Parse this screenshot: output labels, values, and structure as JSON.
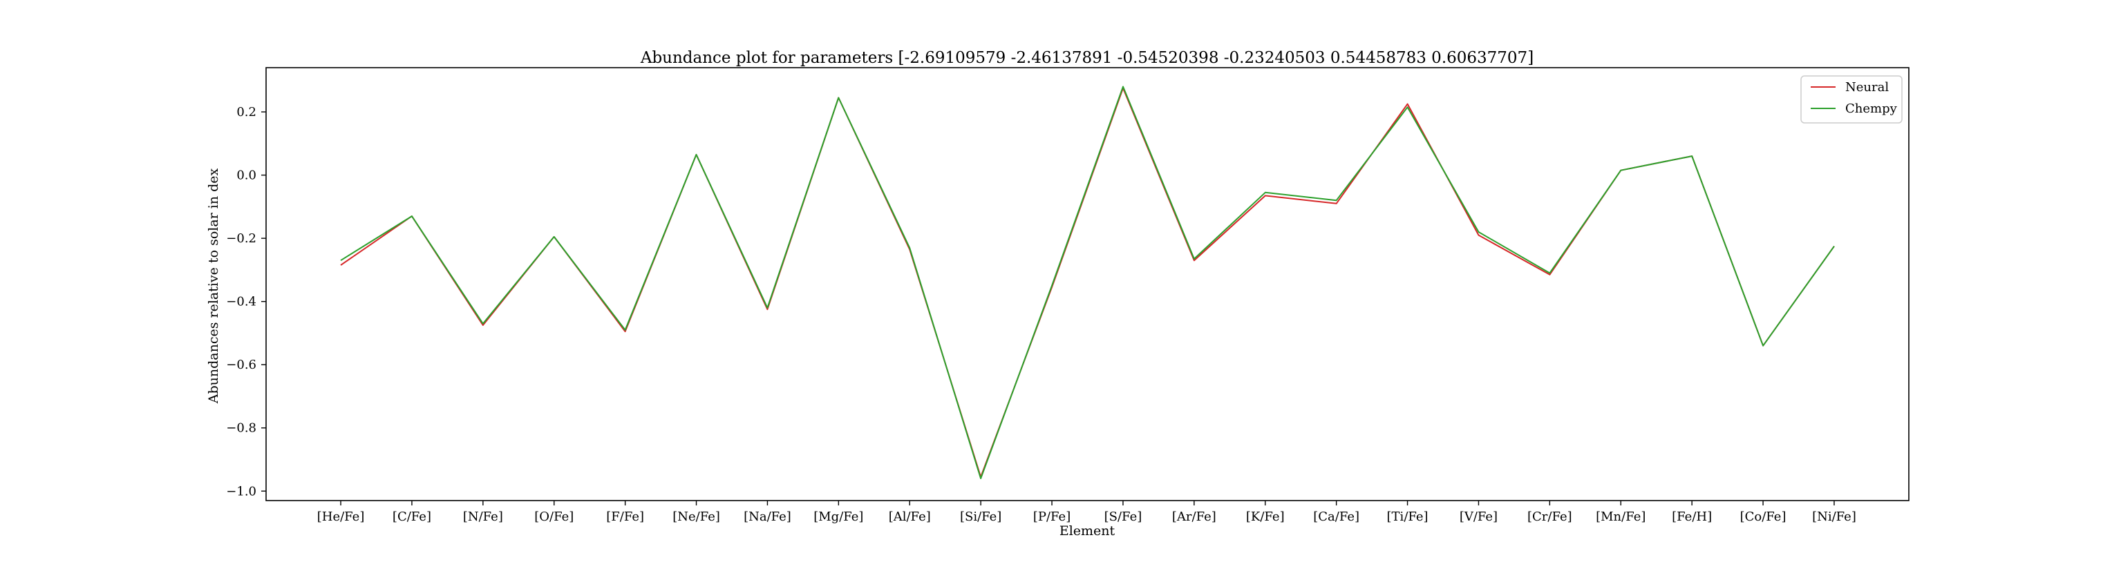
{
  "chart_data": {
    "type": "line",
    "title": "Abundance plot for parameters [-2.69109579 -2.46137891 -0.54520398 -0.23240503  0.54458783  0.60637707]",
    "xlabel": "Element",
    "ylabel": "Abundances relative to solar in dex",
    "categories": [
      "[He/Fe]",
      "[C/Fe]",
      "[N/Fe]",
      "[O/Fe]",
      "[F/Fe]",
      "[Ne/Fe]",
      "[Na/Fe]",
      "[Mg/Fe]",
      "[Al/Fe]",
      "[Si/Fe]",
      "[P/Fe]",
      "[S/Fe]",
      "[Ar/Fe]",
      "[K/Fe]",
      "[Ca/Fe]",
      "[Ti/Fe]",
      "[V/Fe]",
      "[Cr/Fe]",
      "[Mn/Fe]",
      "[Fe/H]",
      "[Co/Fe]",
      "[Ni/Fe]"
    ],
    "ylim": [
      -1.03,
      0.34
    ],
    "yticks": [
      -1.0,
      -0.8,
      -0.6,
      -0.4,
      -0.2,
      0.0,
      0.2
    ],
    "ytick_labels": [
      "−1.0",
      "−0.8",
      "−0.6",
      "−0.4",
      "−0.2",
      "0.0",
      "0.2"
    ],
    "grid": false,
    "legend": "top-right",
    "series": [
      {
        "name": "Neural",
        "color": "#d62728",
        "values": [
          -0.285,
          -0.13,
          -0.475,
          -0.195,
          -0.495,
          0.065,
          -0.425,
          0.245,
          -0.235,
          -0.955,
          -0.355,
          0.275,
          -0.27,
          -0.065,
          -0.09,
          0.225,
          -0.19,
          -0.315,
          0.015,
          0.06,
          -0.54,
          -0.225
        ]
      },
      {
        "name": "Chempy",
        "color": "#2ca02c",
        "values": [
          -0.27,
          -0.13,
          -0.47,
          -0.195,
          -0.49,
          0.065,
          -0.42,
          0.245,
          -0.23,
          -0.96,
          -0.35,
          0.28,
          -0.265,
          -0.055,
          -0.08,
          0.215,
          -0.18,
          -0.31,
          0.015,
          0.06,
          -0.54,
          -0.225
        ]
      }
    ]
  }
}
